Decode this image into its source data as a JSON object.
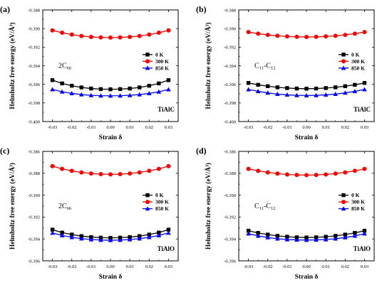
{
  "colors": {
    "0 K": "#000000",
    "300 K": "#ff0000",
    "850 K": "#0000ff"
  },
  "chart_data": [
    {
      "type": "line",
      "panel": "(a)",
      "annotation_main": "2C",
      "annotation_sub": "66",
      "material": "TiAlC",
      "xlabel": "Strain δ",
      "ylabel": "Helmholtz free energy (eV/Å³)",
      "xlim": [
        -0.035,
        0.035
      ],
      "ylim": [
        -0.4,
        -0.388
      ],
      "xticks": [
        "-0.03",
        "-0.02",
        "-0.01",
        "0.00",
        "0.01",
        "0.02",
        "0.03"
      ],
      "yticks": [
        "-0.400",
        "-0.398",
        "-0.396",
        "-0.394",
        "-0.392",
        "-0.390",
        "-0.388"
      ],
      "x": [
        -0.03,
        -0.025,
        -0.02,
        -0.015,
        -0.01,
        -0.005,
        0.0,
        0.005,
        0.01,
        0.015,
        0.02,
        0.025,
        0.03
      ],
      "legend_position": "right",
      "series": [
        {
          "name": "0 K",
          "marker": "square",
          "values": [
            -0.39555,
            -0.3959,
            -0.39615,
            -0.39633,
            -0.39645,
            -0.39651,
            -0.39653,
            -0.39651,
            -0.39645,
            -0.39633,
            -0.39615,
            -0.3959,
            -0.39555
          ]
        },
        {
          "name": "300 K",
          "marker": "circle",
          "values": [
            -0.3902,
            -0.39045,
            -0.39065,
            -0.3908,
            -0.3909,
            -0.39095,
            -0.39097,
            -0.39095,
            -0.3909,
            -0.3908,
            -0.39065,
            -0.39045,
            -0.3902
          ]
        },
        {
          "name": "850 K",
          "marker": "triangle",
          "values": [
            -0.39655,
            -0.3968,
            -0.39697,
            -0.3971,
            -0.39718,
            -0.39722,
            -0.39723,
            -0.39722,
            -0.39718,
            -0.3971,
            -0.39697,
            -0.3968,
            -0.39655
          ]
        }
      ]
    },
    {
      "type": "line",
      "panel": "(b)",
      "annotation_main": "C",
      "annotation_sub": "11",
      "annotation_main2": "-C",
      "annotation_sub2": "12",
      "material": "TiAlC",
      "xlabel": "Strain δ",
      "ylabel": "Helmholtz free energy (eV/Å³)",
      "xlim": [
        -0.035,
        0.035
      ],
      "ylim": [
        -0.4,
        -0.388
      ],
      "xticks": [
        "-0.03",
        "-0.02",
        "-0.01",
        "0.00",
        "0.01",
        "0.02",
        "0.03"
      ],
      "yticks": [
        "-0.400",
        "-0.398",
        "-0.396",
        "-0.394",
        "-0.392",
        "-0.390",
        "-0.388"
      ],
      "x": [
        -0.03,
        -0.025,
        -0.02,
        -0.015,
        -0.01,
        -0.005,
        0.0,
        0.005,
        0.01,
        0.015,
        0.02,
        0.025,
        0.03
      ],
      "legend_position": "right",
      "series": [
        {
          "name": "0 K",
          "marker": "square",
          "values": [
            -0.39585,
            -0.39605,
            -0.3962,
            -0.39632,
            -0.3964,
            -0.39645,
            -0.39647,
            -0.39645,
            -0.3964,
            -0.39632,
            -0.3962,
            -0.39605,
            -0.39585
          ]
        },
        {
          "name": "300 K",
          "marker": "circle",
          "values": [
            -0.39038,
            -0.39055,
            -0.39068,
            -0.39078,
            -0.39085,
            -0.39089,
            -0.3909,
            -0.39089,
            -0.39085,
            -0.39078,
            -0.39068,
            -0.39055,
            -0.39038
          ]
        },
        {
          "name": "850 K",
          "marker": "triangle",
          "values": [
            -0.39655,
            -0.39675,
            -0.39692,
            -0.39705,
            -0.39713,
            -0.39718,
            -0.3972,
            -0.39718,
            -0.39713,
            -0.39705,
            -0.39692,
            -0.39675,
            -0.39655
          ]
        }
      ]
    },
    {
      "type": "line",
      "panel": "(c)",
      "annotation_main": "2C",
      "annotation_sub": "66",
      "material": "TiAlO",
      "xlabel": "Strain δ",
      "ylabel": "Helmholtz free energy (eV/Å³)",
      "xlim": [
        -0.035,
        0.035
      ],
      "ylim": [
        -0.396,
        -0.386
      ],
      "xticks": [
        "-0.03",
        "-0.02",
        "-0.01",
        "0.00",
        "0.01",
        "0.02",
        "0.03"
      ],
      "yticks": [
        "-0.396",
        "-0.394",
        "-0.392",
        "-0.390",
        "-0.388",
        "-0.386"
      ],
      "x": [
        -0.03,
        -0.025,
        -0.02,
        -0.015,
        -0.01,
        -0.005,
        0.0,
        0.005,
        0.01,
        0.015,
        0.02,
        0.025,
        0.03
      ],
      "legend_position": "right",
      "series": [
        {
          "name": "0 K",
          "marker": "square",
          "values": [
            -0.39315,
            -0.39342,
            -0.3936,
            -0.39374,
            -0.39383,
            -0.39388,
            -0.3939,
            -0.39388,
            -0.39383,
            -0.39374,
            -0.3936,
            -0.39342,
            -0.39315
          ]
        },
        {
          "name": "300 K",
          "marker": "circle",
          "values": [
            -0.38735,
            -0.3876,
            -0.38778,
            -0.38792,
            -0.38802,
            -0.38808,
            -0.3881,
            -0.38808,
            -0.38802,
            -0.38792,
            -0.38778,
            -0.3876,
            -0.38735
          ]
        },
        {
          "name": "850 K",
          "marker": "triangle",
          "values": [
            -0.39345,
            -0.39368,
            -0.39385,
            -0.39397,
            -0.39405,
            -0.3941,
            -0.39412,
            -0.3941,
            -0.39405,
            -0.39397,
            -0.39385,
            -0.39368,
            -0.39345
          ]
        }
      ]
    },
    {
      "type": "line",
      "panel": "(d)",
      "annotation_main": "C",
      "annotation_sub": "11",
      "annotation_main2": "-C",
      "annotation_sub2": "12",
      "material": "TiAlO",
      "xlabel": "Strain δ",
      "ylabel": "Helmholtz free energy (eV/Å³)",
      "xlim": [
        -0.035,
        0.035
      ],
      "ylim": [
        -0.396,
        -0.386
      ],
      "xticks": [
        "-0.03",
        "-0.02",
        "-0.01",
        "0.00",
        "0.01",
        "0.02",
        "0.03"
      ],
      "yticks": [
        "-0.396",
        "-0.394",
        "-0.392",
        "-0.390",
        "-0.388",
        "-0.386"
      ],
      "x": [
        -0.03,
        -0.025,
        -0.02,
        -0.015,
        -0.01,
        -0.005,
        0.0,
        0.005,
        0.01,
        0.015,
        0.02,
        0.025,
        0.03
      ],
      "legend_position": "right",
      "series": [
        {
          "name": "0 K",
          "marker": "square",
          "values": [
            -0.39325,
            -0.39345,
            -0.3936,
            -0.39372,
            -0.3938,
            -0.39385,
            -0.39387,
            -0.39385,
            -0.3938,
            -0.39372,
            -0.3936,
            -0.39345,
            -0.39325
          ]
        },
        {
          "name": "300 K",
          "marker": "circle",
          "values": [
            -0.3876,
            -0.38778,
            -0.38792,
            -0.38803,
            -0.38811,
            -0.38815,
            -0.38817,
            -0.38815,
            -0.38811,
            -0.38803,
            -0.38792,
            -0.38778,
            -0.3876
          ]
        },
        {
          "name": "850 K",
          "marker": "triangle",
          "values": [
            -0.39352,
            -0.39372,
            -0.39387,
            -0.39398,
            -0.39405,
            -0.39409,
            -0.3941,
            -0.39409,
            -0.39405,
            -0.39398,
            -0.39387,
            -0.39372,
            -0.39352
          ]
        }
      ]
    }
  ]
}
